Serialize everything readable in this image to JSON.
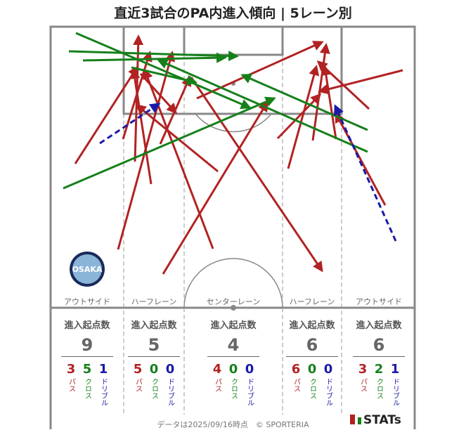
{
  "title": "直近3試合のPA内進入傾向 | 5レーン別",
  "lanes": [
    "アウトサイド",
    "ハーフレーン",
    "センターレーン",
    "ハーフレーン",
    "アウトサイド"
  ],
  "stats_header": "進入起点数",
  "stats": [
    {
      "total": "9",
      "pass": "3",
      "cross": "5",
      "dribble": "1"
    },
    {
      "total": "5",
      "pass": "5",
      "cross": "0",
      "dribble": "0"
    },
    {
      "total": "4",
      "pass": "4",
      "cross": "0",
      "dribble": "0"
    },
    {
      "total": "6",
      "pass": "6",
      "cross": "0",
      "dribble": "0"
    },
    {
      "total": "6",
      "pass": "3",
      "cross": "2",
      "dribble": "1"
    }
  ],
  "type_labels": {
    "pass": "パス",
    "cross": "クロス",
    "dribble": "ドリブル"
  },
  "colors": {
    "pass": "#b22222",
    "cross": "#15801a",
    "dribble": "#1a1aa8"
  },
  "logo_text": "OSAKA",
  "footer": "データは2025/09/16時点　© SPORTERIA",
  "brand": "STATs"
}
